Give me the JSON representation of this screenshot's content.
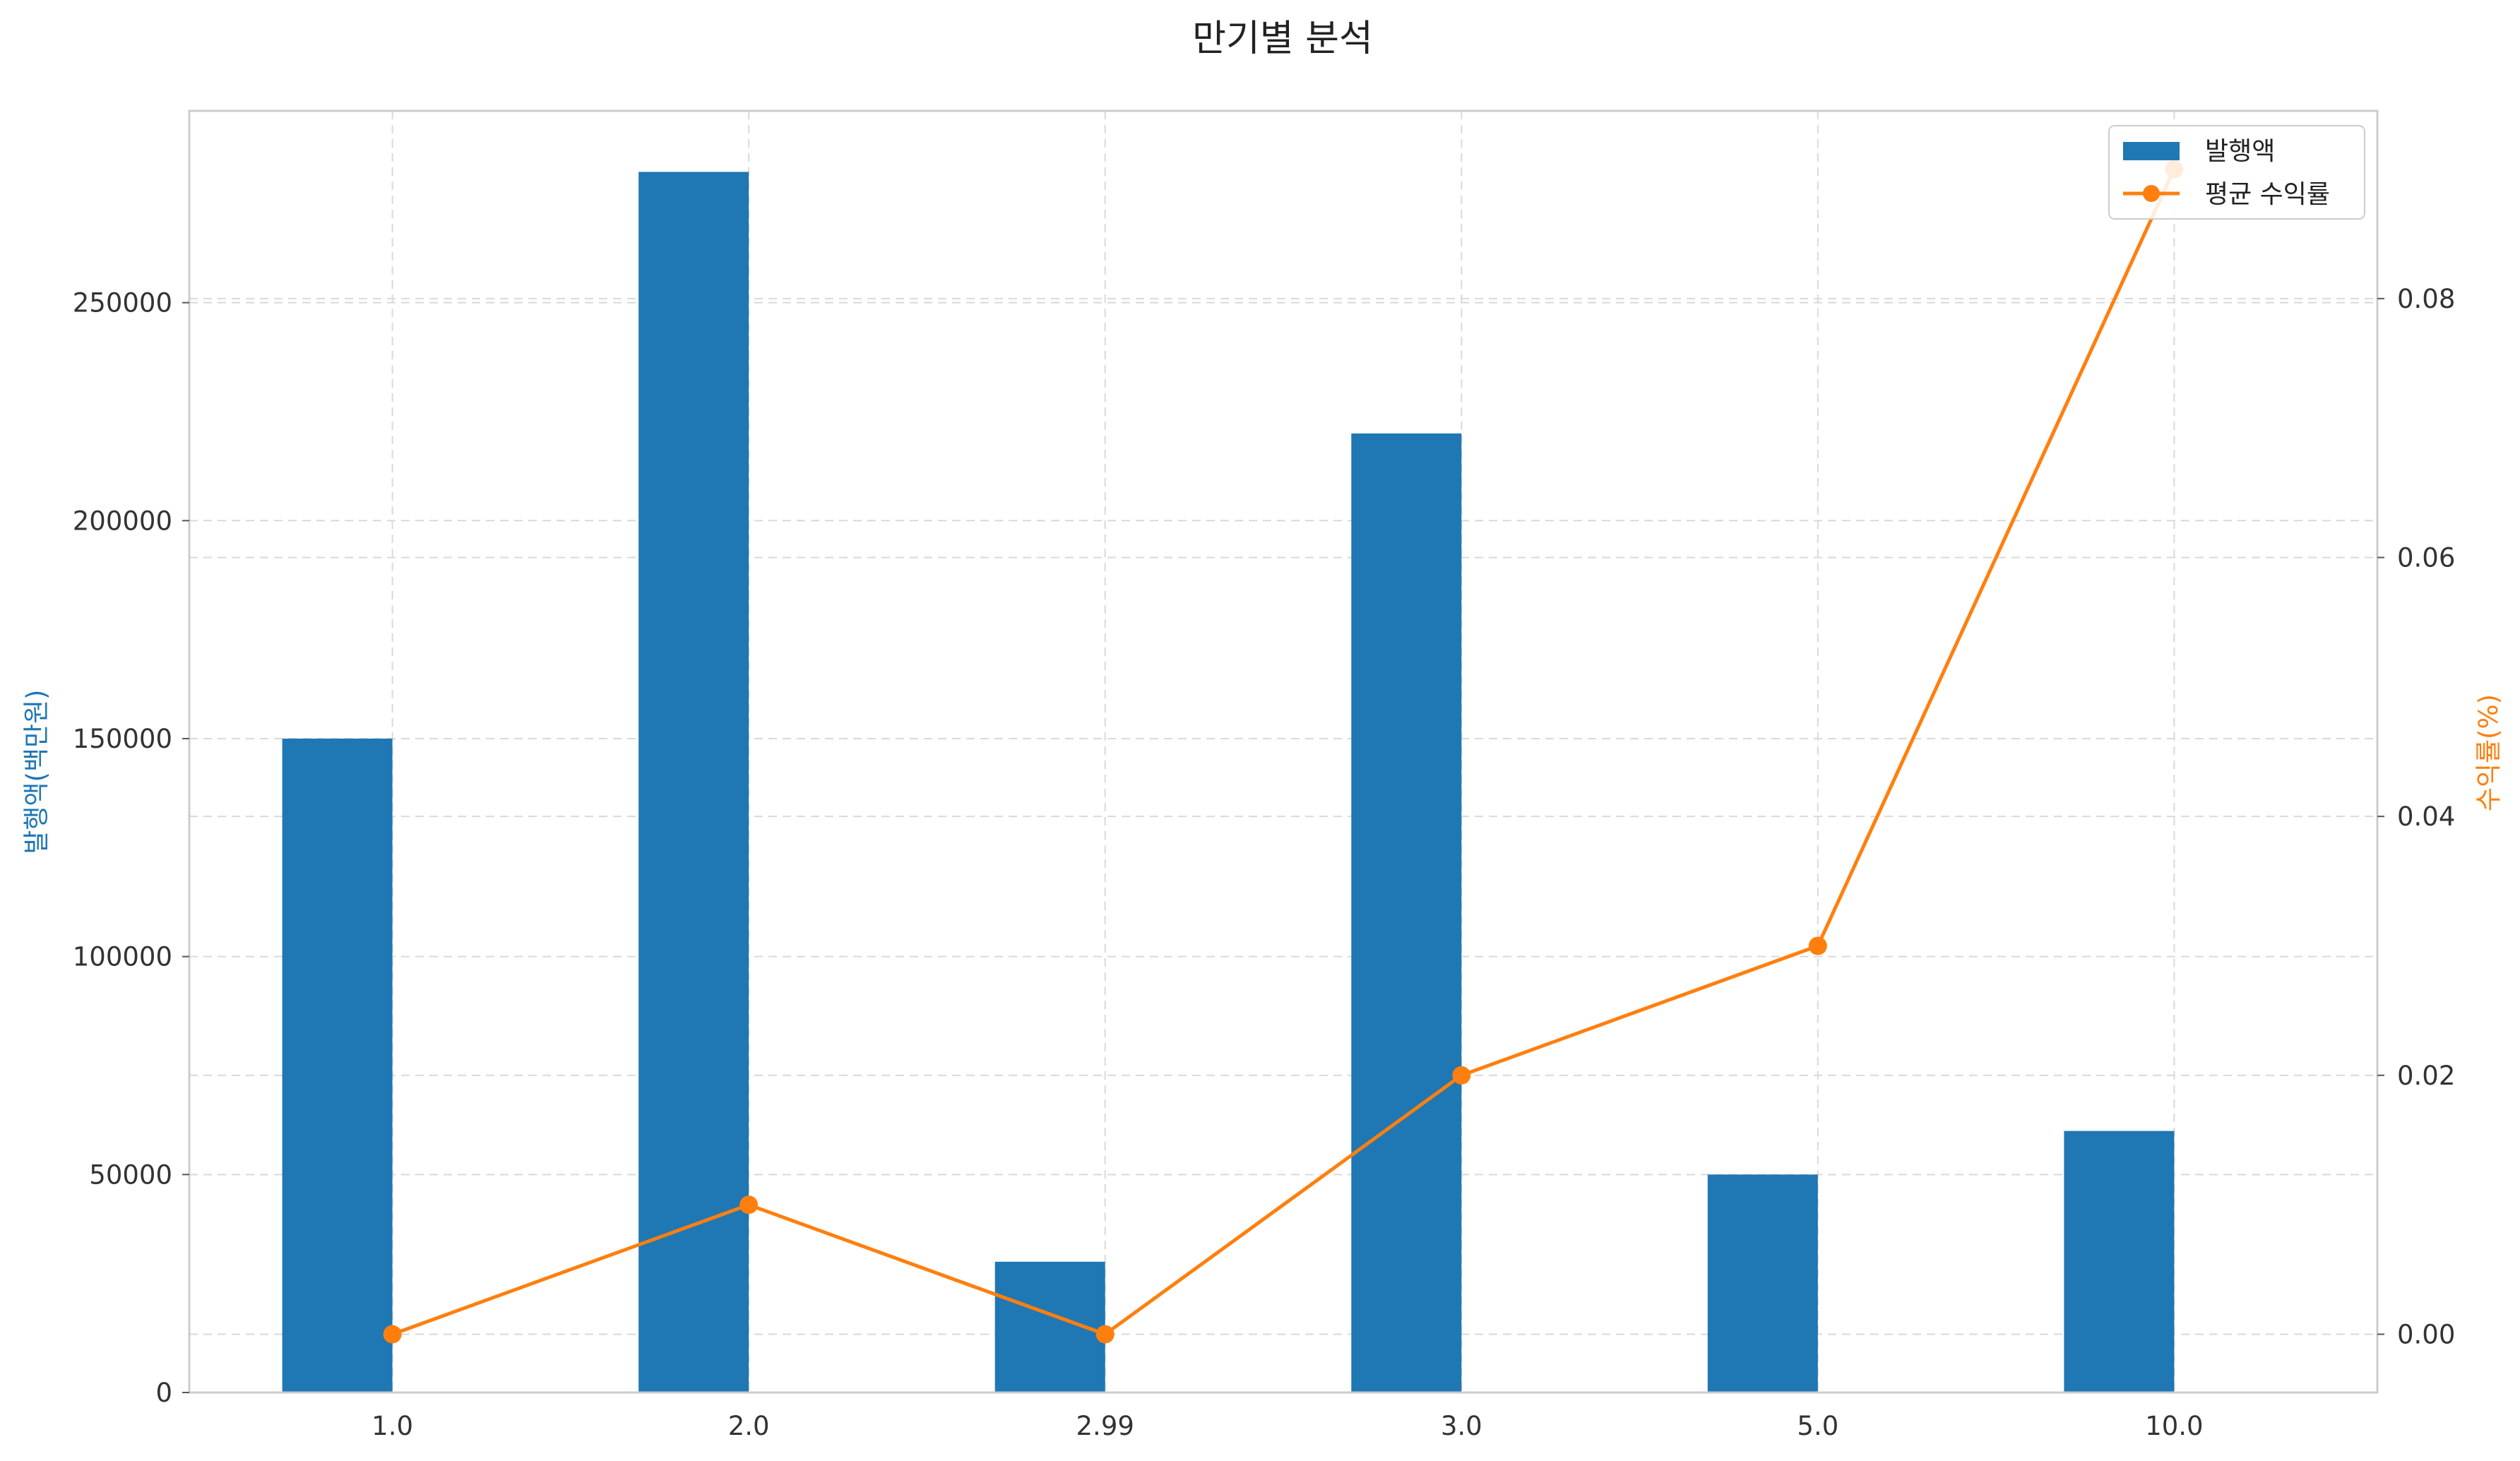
{
  "chart_data": {
    "type": "bar+line",
    "title": "만기별 분석",
    "categories": [
      "1.0",
      "2.0",
      "2.99",
      "3.0",
      "5.0",
      "10.0"
    ],
    "series": [
      {
        "name": "발행액",
        "type": "bar",
        "axis": "left",
        "color": "#1f77b4",
        "values": [
          150000,
          280000,
          30000,
          220000,
          50000,
          60000
        ]
      },
      {
        "name": "평균 수익률",
        "type": "line",
        "axis": "right",
        "color": "#ff7f0e",
        "values": [
          0.0,
          0.01,
          0.0,
          0.02,
          0.03,
          0.09
        ]
      }
    ],
    "ylabel_left": "발행액(백만원)",
    "ylabel_right": "수익률(%)",
    "ylim_left": [
      0,
      294000
    ],
    "ylim_right": [
      -0.0045,
      0.0945
    ],
    "yticks_left": [
      "0",
      "50000",
      "100000",
      "150000",
      "200000",
      "250000"
    ],
    "yticks_left_values": [
      0,
      50000,
      100000,
      150000,
      200000,
      250000
    ],
    "yticks_right": [
      "0.00",
      "0.02",
      "0.04",
      "0.06",
      "0.08"
    ],
    "yticks_right_values": [
      0,
      0.02,
      0.04,
      0.06,
      0.08
    ],
    "grid": true,
    "legend_position": "top-right"
  }
}
